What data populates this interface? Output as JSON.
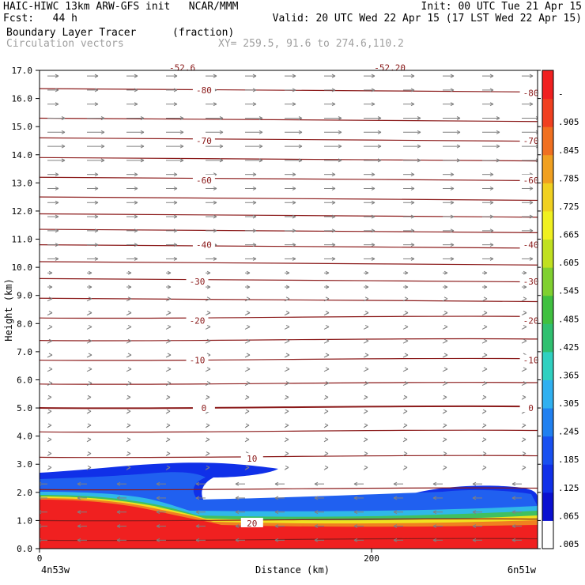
{
  "header": {
    "line1_left": "HAIC-HIWC 13km ARW-GFS init   NCAR/MMM",
    "line1_right": "Init: 00 UTC Tue 21 Apr 15",
    "line2_left": "Fcst:   44 h",
    "line2_right": "Valid: 20 UTC Wed 22 Apr 15 (17 LST Wed 22 Apr 15)",
    "line3_left": "Boundary Layer Tracer",
    "line3_mid": "(fraction)",
    "line4_left": "Circulation vectors",
    "line4_mid": "XY= 259.5, 91.6 to 274.6,110.2"
  },
  "colors": {
    "contour": "#8b1a1a",
    "vector": "#808080"
  },
  "chart_data": {
    "type": "cross-section",
    "xlabel": "Distance (km)",
    "ylabel": "Height (km)",
    "xlim": [
      0,
      300
    ],
    "ylim": [
      0,
      17
    ],
    "x_ticks": [
      {
        "value": 0,
        "label": "0"
      },
      {
        "value": 200,
        "label": "200"
      }
    ],
    "x_end_labels": {
      "left": "4n53w",
      "right": "6n51w"
    },
    "y_ticks": [
      "0.0",
      "1.0",
      "2.0",
      "3.0",
      "4.0",
      "5.0",
      "6.0",
      "7.0",
      "8.0",
      "9.0",
      "10.0",
      "11.0",
      "12.0",
      "13.0",
      "14.0",
      "15.0",
      "16.0",
      "17.0"
    ],
    "colorbar": {
      "labels": [
        ".005",
        ".065",
        ".125",
        ".185",
        ".245",
        ".305",
        ".365",
        ".425",
        ".485",
        ".545",
        ".605",
        ".665",
        ".725",
        ".785",
        ".845",
        ".905",
        "-"
      ]
    },
    "contour_labels": [
      {
        "text": "-80",
        "x": 99,
        "y": 16.3
      },
      {
        "text": "-80",
        "x": 296,
        "y": 16.2
      },
      {
        "text": "-70",
        "x": 99,
        "y": 14.5
      },
      {
        "text": "-70",
        "x": 296,
        "y": 14.5
      },
      {
        "text": "-60",
        "x": 99,
        "y": 13.1
      },
      {
        "text": "-60",
        "x": 296,
        "y": 13.1
      },
      {
        "text": "-40",
        "x": 99,
        "y": 10.8
      },
      {
        "text": "-40",
        "x": 296,
        "y": 10.8
      },
      {
        "text": "-30",
        "x": 95,
        "y": 9.5
      },
      {
        "text": "-30",
        "x": 296,
        "y": 9.5
      },
      {
        "text": "-20",
        "x": 95,
        "y": 8.1
      },
      {
        "text": "-20",
        "x": 296,
        "y": 8.1
      },
      {
        "text": "-10",
        "x": 95,
        "y": 6.7
      },
      {
        "text": "-10",
        "x": 296,
        "y": 6.7
      },
      {
        "text": "0",
        "x": 99,
        "y": 5.0
      },
      {
        "text": "0",
        "x": 296,
        "y": 5.0
      },
      {
        "text": "10",
        "x": 128,
        "y": 3.2
      },
      {
        "text": "20",
        "x": 128,
        "y": 0.9
      },
      {
        "text": "-52.6",
        "x": 86,
        "y": 17.1
      },
      {
        "text": "-52.20",
        "x": 211,
        "y": 17.1
      }
    ]
  }
}
